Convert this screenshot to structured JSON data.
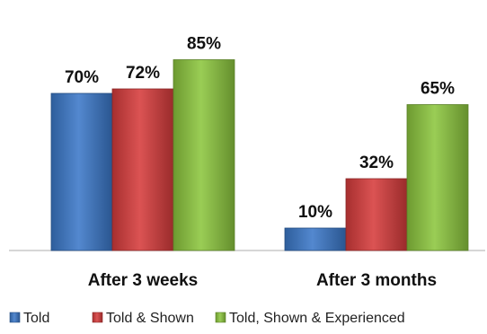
{
  "chart_data": {
    "type": "bar",
    "categories": [
      "After 3 weeks",
      "After 3 months"
    ],
    "series": [
      {
        "name": "Told",
        "values": [
          70,
          10
        ],
        "value_labels": [
          "70%",
          "10%"
        ],
        "color": "#3b78c8"
      },
      {
        "name": "Told & Shown",
        "values": [
          72,
          32
        ],
        "value_labels": [
          "72%",
          "32%"
        ],
        "color": "#d63c3c"
      },
      {
        "name": "Told, Shown & Experienced",
        "values": [
          85,
          65
        ],
        "value_labels": [
          "85%",
          "65%"
        ],
        "color": "#8cc63e"
      }
    ],
    "ylim": [
      0,
      100
    ],
    "grid": false,
    "legend_position": "bottom"
  }
}
